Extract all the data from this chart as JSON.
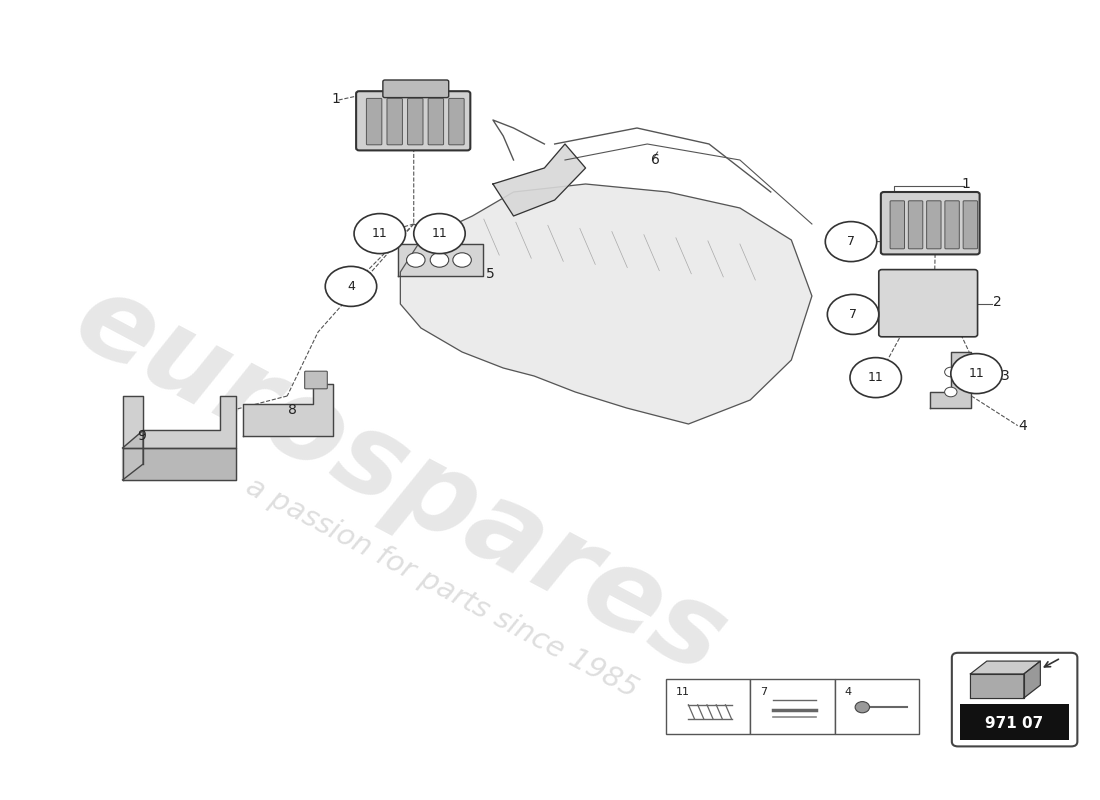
{
  "bg_color": "#ffffff",
  "watermark_text1": "eurospares",
  "watermark_text2": "a passion for parts since 1985",
  "part_number": "971 07"
}
